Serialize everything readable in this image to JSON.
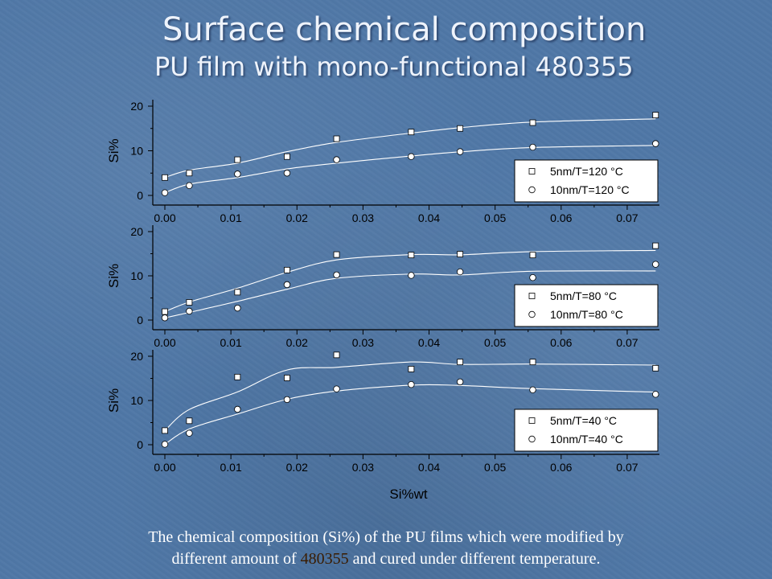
{
  "title": "Surface chemical composition",
  "subtitle": "PU film with mono-functional 480355",
  "caption": {
    "line1": "The chemical composition (Si%) of the PU films which were modified by",
    "line2_before": "different amount of ",
    "line2_highlight": "480355",
    "line2_after": " and cured under different temperature."
  },
  "colors": {
    "background": "#4f77a6",
    "axis": "#000000",
    "curve": "#ffffff",
    "marker_fill": "#ffffff",
    "legend_bg": "#ffffff",
    "caption_highlight": "#3a1c00"
  },
  "chart_data": [
    {
      "type": "scatter",
      "xlabel": "",
      "ylabel": "Si%",
      "xlim": [
        0.0,
        0.075
      ],
      "ylim": [
        0,
        20
      ],
      "x_ticks": [
        "0.00",
        "0.01",
        "0.02",
        "0.03",
        "0.04",
        "0.05",
        "0.06",
        "0.07"
      ],
      "y_ticks": [
        "0",
        "10",
        "20"
      ],
      "legend_position": "bottom-right",
      "series": [
        {
          "name": "5nm/T=120 °C",
          "marker": "square",
          "x": [
            0.0,
            0.0037,
            0.011,
            0.0185,
            0.026,
            0.0373,
            0.0447,
            0.0557,
            0.0743
          ],
          "y": [
            4.0,
            5.0,
            8.0,
            8.7,
            12.7,
            14.2,
            15.0,
            16.3,
            18.0
          ]
        },
        {
          "name": "10nm/T=120 °C",
          "marker": "circle",
          "x": [
            0.0,
            0.0037,
            0.011,
            0.0185,
            0.026,
            0.0373,
            0.0447,
            0.0557,
            0.0743
          ],
          "y": [
            0.6,
            2.2,
            4.8,
            5.0,
            8.0,
            8.7,
            9.8,
            10.8,
            11.6
          ]
        }
      ]
    },
    {
      "type": "scatter",
      "xlabel": "",
      "ylabel": "Si%",
      "xlim": [
        0.0,
        0.075
      ],
      "ylim": [
        0,
        20
      ],
      "x_ticks": [
        "0.00",
        "0.01",
        "0.02",
        "0.03",
        "0.04",
        "0.05",
        "0.06",
        "0.07"
      ],
      "y_ticks": [
        "0",
        "10",
        "20"
      ],
      "legend_position": "bottom-right",
      "series": [
        {
          "name": "5nm/T=80 °C",
          "marker": "square",
          "x": [
            0.0,
            0.0037,
            0.011,
            0.0185,
            0.026,
            0.0373,
            0.0447,
            0.0557,
            0.0743
          ],
          "y": [
            1.9,
            4.0,
            6.3,
            11.3,
            14.8,
            14.7,
            14.9,
            14.7,
            16.8
          ]
        },
        {
          "name": "10nm/T=80 °C",
          "marker": "circle",
          "x": [
            0.0,
            0.0037,
            0.011,
            0.0185,
            0.026,
            0.0373,
            0.0447,
            0.0557,
            0.0743
          ],
          "y": [
            0.5,
            2.0,
            2.7,
            8.0,
            10.2,
            10.1,
            10.9,
            9.6,
            12.6
          ]
        }
      ]
    },
    {
      "type": "scatter",
      "xlabel": "Si%wt",
      "ylabel": "Si%",
      "xlim": [
        0.0,
        0.075
      ],
      "ylim": [
        0,
        20
      ],
      "x_ticks": [
        "0.00",
        "0.01",
        "0.02",
        "0.03",
        "0.04",
        "0.05",
        "0.06",
        "0.07"
      ],
      "y_ticks": [
        "0",
        "10",
        "20"
      ],
      "legend_position": "bottom-right",
      "series": [
        {
          "name": "5nm/T=40 °C",
          "marker": "square",
          "x": [
            0.0,
            0.0037,
            0.011,
            0.0185,
            0.026,
            0.0373,
            0.0447,
            0.0557,
            0.0743
          ],
          "y": [
            3.2,
            5.4,
            15.3,
            15.1,
            20.3,
            17.1,
            18.7,
            18.7,
            17.3
          ]
        },
        {
          "name": "10nm/T=40 °C",
          "marker": "circle",
          "x": [
            0.0,
            0.0037,
            0.011,
            0.0185,
            0.026,
            0.0373,
            0.0447,
            0.0557,
            0.0743
          ],
          "y": [
            0.1,
            2.6,
            8.0,
            10.2,
            12.6,
            13.6,
            14.2,
            12.4,
            11.4
          ]
        }
      ]
    }
  ]
}
